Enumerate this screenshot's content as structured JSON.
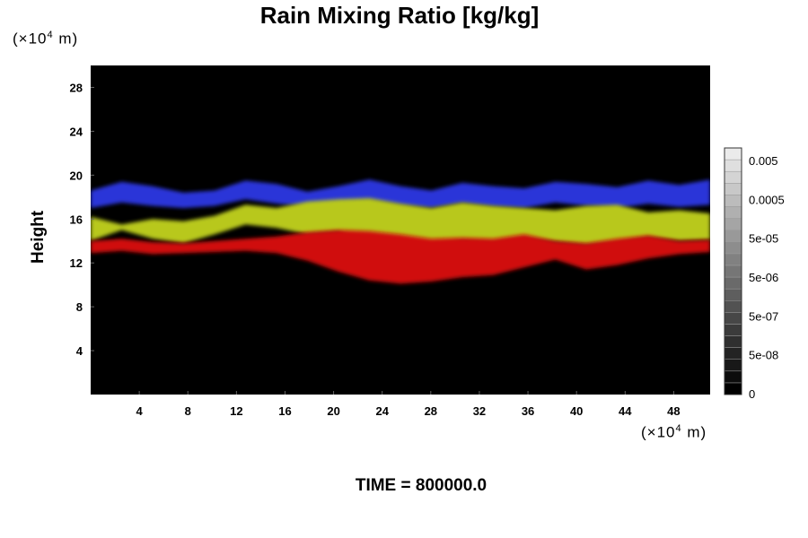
{
  "chart_data": {
    "type": "heatmap",
    "title": "Rain Mixing Ratio [kg/kg]",
    "ylabel": "Height",
    "y_unit": {
      "pre": "(×10",
      "exp": "4",
      "post": " m)"
    },
    "x_unit": {
      "pre": "(×10",
      "exp": "4",
      "post": " m)"
    },
    "xlim": [
      0,
      51
    ],
    "ylim": [
      0,
      30
    ],
    "x_ticks": [
      4,
      8,
      12,
      16,
      20,
      24,
      28,
      32,
      36,
      40,
      44,
      48
    ],
    "y_ticks": [
      4,
      8,
      12,
      16,
      20,
      24,
      28
    ],
    "background": "#000000",
    "colorbar": {
      "labels": [
        "0.005",
        "0.0005",
        "5e-05",
        "5e-06",
        "5e-07",
        "5e-08",
        "0"
      ],
      "levels": 21
    },
    "bands": [
      {
        "color": "#2a36d8",
        "top": [
          18.6,
          19.4,
          19.0,
          18.4,
          18.6,
          19.5,
          19.2,
          18.5,
          19.0,
          19.6,
          19.0,
          18.6,
          19.3,
          19.0,
          18.8,
          19.4,
          19.2,
          18.9,
          19.5,
          19.1,
          19.6
        ],
        "bottom": [
          17.0,
          17.5,
          17.2,
          17.0,
          17.2,
          17.8,
          17.4,
          17.1,
          17.3,
          17.6,
          17.2,
          17.0,
          17.4,
          17.1,
          17.0,
          17.5,
          17.2,
          17.0,
          17.4,
          17.1,
          17.3
        ]
      },
      {
        "color": "#b8c81a",
        "top": [
          16.2,
          15.5,
          16.0,
          15.8,
          16.3,
          17.3,
          17.0,
          17.6,
          17.8,
          17.9,
          17.4,
          17.0,
          17.5,
          17.2,
          17.0,
          16.8,
          17.2,
          17.3,
          16.6,
          16.8,
          16.5
        ],
        "bottom": [
          14.0,
          15.0,
          14.2,
          13.8,
          14.6,
          15.5,
          15.2,
          14.6,
          14.8,
          13.7,
          13.4,
          13.5,
          14.0,
          13.8,
          14.2,
          13.9,
          13.6,
          13.8,
          14.3,
          14.0,
          14.1
        ]
      },
      {
        "color": "#d01010",
        "top": [
          14.0,
          14.2,
          13.9,
          13.8,
          14.0,
          14.2,
          14.4,
          14.8,
          15.0,
          14.9,
          14.6,
          14.2,
          14.3,
          14.2,
          14.6,
          14.0,
          13.8,
          14.2,
          14.5,
          14.0,
          14.1
        ],
        "bottom": [
          12.9,
          13.1,
          12.8,
          12.9,
          13.0,
          13.1,
          12.9,
          12.2,
          11.2,
          10.4,
          10.1,
          10.3,
          10.7,
          10.9,
          11.6,
          12.3,
          11.4,
          11.8,
          12.4,
          12.8,
          13.0
        ]
      }
    ],
    "time_label": "TIME = 800000.0"
  }
}
